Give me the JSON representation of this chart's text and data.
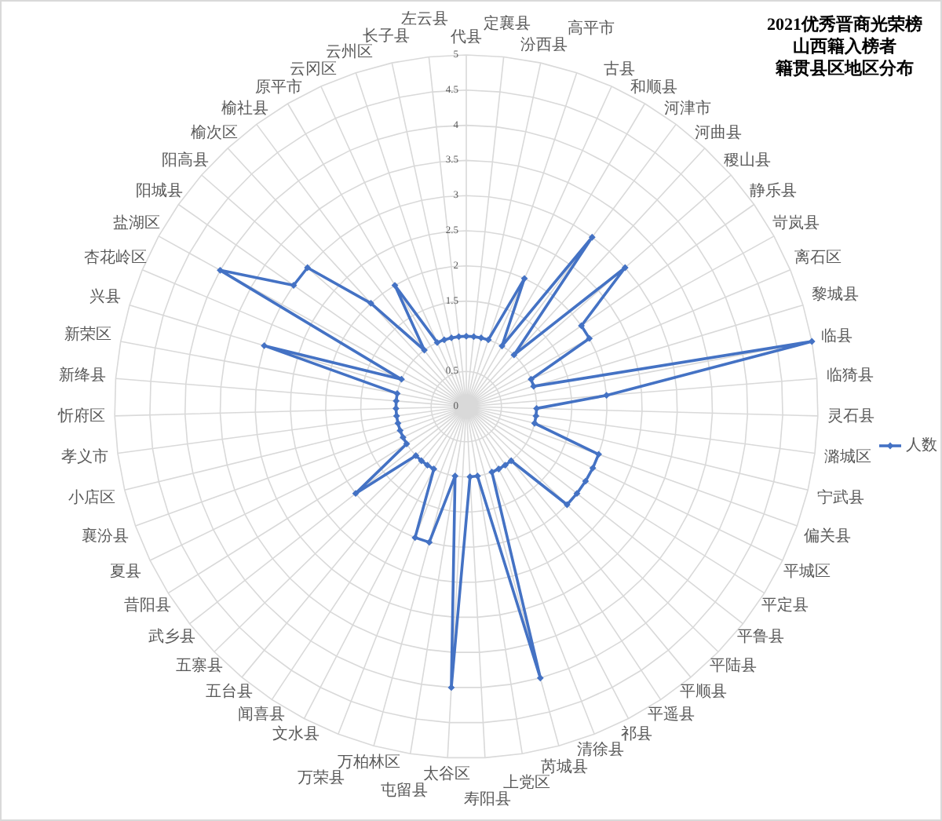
{
  "chart_data": {
    "type": "radar",
    "title": "2021优秀晋商光荣榜",
    "subtitle": "山西籍入榜者籍贯县区地区分布",
    "categories": [
      "代县",
      "定襄县",
      "汾西县",
      "高平市",
      "古县",
      "和顺县",
      "河津市",
      "河曲县",
      "稷山县",
      "静乐县",
      "岢岚县",
      "离石区",
      "黎城县",
      "临县",
      "临猗县",
      "灵石县",
      "潞城区",
      "宁武县",
      "偏关县",
      "平城区",
      "平定县",
      "平鲁县",
      "平陆县",
      "平顺县",
      "平遥县",
      "祁县",
      "清徐县",
      "芮城县",
      "上党区",
      "寿阳县",
      "太谷区",
      "屯留县",
      "万柏林区",
      "万荣县",
      "文水县",
      "闻喜县",
      "五台县",
      "五寨县",
      "武乡县",
      "昔阳县",
      "夏县",
      "襄汾县",
      "小店区",
      "孝义市",
      "忻府区",
      "新绛县",
      "新荣区",
      "兴县",
      "杏花岭区",
      "盐湖区",
      "阳城县",
      "阳高县",
      "榆次区",
      "榆社县",
      "原平市",
      "云冈区",
      "云州区",
      "长子县",
      "左云县"
    ],
    "series": [
      {
        "name": "人数",
        "color": "#4472c4",
        "values": [
          1,
          1,
          1,
          1,
          2,
          1,
          3,
          1,
          3,
          2,
          2,
          1,
          1,
          5,
          2,
          1,
          1,
          1,
          2,
          2,
          2,
          2,
          2,
          1,
          1,
          1,
          1,
          4,
          1,
          1,
          4,
          1,
          2,
          2,
          1,
          1,
          1,
          1,
          2,
          1,
          1,
          1,
          1,
          1,
          1,
          1,
          1,
          3,
          1,
          4,
          3,
          3,
          2,
          1,
          2,
          1,
          1,
          1,
          1
        ]
      }
    ],
    "ylim": [
      0,
      5
    ],
    "yticks": [
      0,
      0.5,
      1.5,
      2,
      2.5,
      3,
      3.5,
      4,
      4.5,
      5
    ],
    "grid": true,
    "legend": "right",
    "marker": "diamond",
    "line_style": "solid"
  }
}
